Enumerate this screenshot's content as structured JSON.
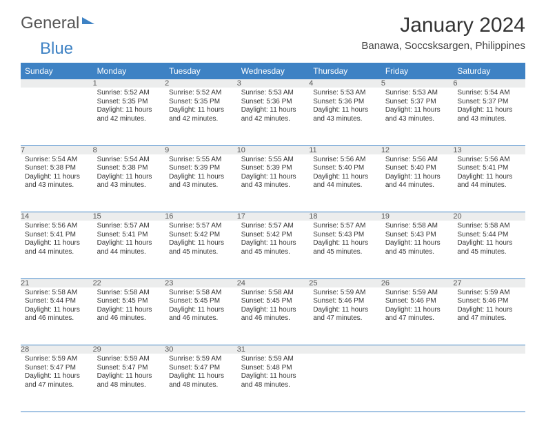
{
  "logo": {
    "general": "General",
    "blue": "Blue"
  },
  "title": "January 2024",
  "location": "Banawa, Soccsksargen, Philippines",
  "colors": {
    "header_bg": "#3e82c4",
    "header_text": "#ffffff",
    "daynum_bg": "#eceded",
    "border": "#3e82c4",
    "text": "#333333"
  },
  "weekdays": [
    "Sunday",
    "Monday",
    "Tuesday",
    "Wednesday",
    "Thursday",
    "Friday",
    "Saturday"
  ],
  "weeks": [
    [
      null,
      {
        "n": "1",
        "sr": "Sunrise: 5:52 AM",
        "ss": "Sunset: 5:35 PM",
        "dl": "Daylight: 11 hours and 42 minutes."
      },
      {
        "n": "2",
        "sr": "Sunrise: 5:52 AM",
        "ss": "Sunset: 5:35 PM",
        "dl": "Daylight: 11 hours and 42 minutes."
      },
      {
        "n": "3",
        "sr": "Sunrise: 5:53 AM",
        "ss": "Sunset: 5:36 PM",
        "dl": "Daylight: 11 hours and 42 minutes."
      },
      {
        "n": "4",
        "sr": "Sunrise: 5:53 AM",
        "ss": "Sunset: 5:36 PM",
        "dl": "Daylight: 11 hours and 43 minutes."
      },
      {
        "n": "5",
        "sr": "Sunrise: 5:53 AM",
        "ss": "Sunset: 5:37 PM",
        "dl": "Daylight: 11 hours and 43 minutes."
      },
      {
        "n": "6",
        "sr": "Sunrise: 5:54 AM",
        "ss": "Sunset: 5:37 PM",
        "dl": "Daylight: 11 hours and 43 minutes."
      }
    ],
    [
      {
        "n": "7",
        "sr": "Sunrise: 5:54 AM",
        "ss": "Sunset: 5:38 PM",
        "dl": "Daylight: 11 hours and 43 minutes."
      },
      {
        "n": "8",
        "sr": "Sunrise: 5:54 AM",
        "ss": "Sunset: 5:38 PM",
        "dl": "Daylight: 11 hours and 43 minutes."
      },
      {
        "n": "9",
        "sr": "Sunrise: 5:55 AM",
        "ss": "Sunset: 5:39 PM",
        "dl": "Daylight: 11 hours and 43 minutes."
      },
      {
        "n": "10",
        "sr": "Sunrise: 5:55 AM",
        "ss": "Sunset: 5:39 PM",
        "dl": "Daylight: 11 hours and 43 minutes."
      },
      {
        "n": "11",
        "sr": "Sunrise: 5:56 AM",
        "ss": "Sunset: 5:40 PM",
        "dl": "Daylight: 11 hours and 44 minutes."
      },
      {
        "n": "12",
        "sr": "Sunrise: 5:56 AM",
        "ss": "Sunset: 5:40 PM",
        "dl": "Daylight: 11 hours and 44 minutes."
      },
      {
        "n": "13",
        "sr": "Sunrise: 5:56 AM",
        "ss": "Sunset: 5:41 PM",
        "dl": "Daylight: 11 hours and 44 minutes."
      }
    ],
    [
      {
        "n": "14",
        "sr": "Sunrise: 5:56 AM",
        "ss": "Sunset: 5:41 PM",
        "dl": "Daylight: 11 hours and 44 minutes."
      },
      {
        "n": "15",
        "sr": "Sunrise: 5:57 AM",
        "ss": "Sunset: 5:41 PM",
        "dl": "Daylight: 11 hours and 44 minutes."
      },
      {
        "n": "16",
        "sr": "Sunrise: 5:57 AM",
        "ss": "Sunset: 5:42 PM",
        "dl": "Daylight: 11 hours and 45 minutes."
      },
      {
        "n": "17",
        "sr": "Sunrise: 5:57 AM",
        "ss": "Sunset: 5:42 PM",
        "dl": "Daylight: 11 hours and 45 minutes."
      },
      {
        "n": "18",
        "sr": "Sunrise: 5:57 AM",
        "ss": "Sunset: 5:43 PM",
        "dl": "Daylight: 11 hours and 45 minutes."
      },
      {
        "n": "19",
        "sr": "Sunrise: 5:58 AM",
        "ss": "Sunset: 5:43 PM",
        "dl": "Daylight: 11 hours and 45 minutes."
      },
      {
        "n": "20",
        "sr": "Sunrise: 5:58 AM",
        "ss": "Sunset: 5:44 PM",
        "dl": "Daylight: 11 hours and 45 minutes."
      }
    ],
    [
      {
        "n": "21",
        "sr": "Sunrise: 5:58 AM",
        "ss": "Sunset: 5:44 PM",
        "dl": "Daylight: 11 hours and 46 minutes."
      },
      {
        "n": "22",
        "sr": "Sunrise: 5:58 AM",
        "ss": "Sunset: 5:45 PM",
        "dl": "Daylight: 11 hours and 46 minutes."
      },
      {
        "n": "23",
        "sr": "Sunrise: 5:58 AM",
        "ss": "Sunset: 5:45 PM",
        "dl": "Daylight: 11 hours and 46 minutes."
      },
      {
        "n": "24",
        "sr": "Sunrise: 5:58 AM",
        "ss": "Sunset: 5:45 PM",
        "dl": "Daylight: 11 hours and 46 minutes."
      },
      {
        "n": "25",
        "sr": "Sunrise: 5:59 AM",
        "ss": "Sunset: 5:46 PM",
        "dl": "Daylight: 11 hours and 47 minutes."
      },
      {
        "n": "26",
        "sr": "Sunrise: 5:59 AM",
        "ss": "Sunset: 5:46 PM",
        "dl": "Daylight: 11 hours and 47 minutes."
      },
      {
        "n": "27",
        "sr": "Sunrise: 5:59 AM",
        "ss": "Sunset: 5:46 PM",
        "dl": "Daylight: 11 hours and 47 minutes."
      }
    ],
    [
      {
        "n": "28",
        "sr": "Sunrise: 5:59 AM",
        "ss": "Sunset: 5:47 PM",
        "dl": "Daylight: 11 hours and 47 minutes."
      },
      {
        "n": "29",
        "sr": "Sunrise: 5:59 AM",
        "ss": "Sunset: 5:47 PM",
        "dl": "Daylight: 11 hours and 48 minutes."
      },
      {
        "n": "30",
        "sr": "Sunrise: 5:59 AM",
        "ss": "Sunset: 5:47 PM",
        "dl": "Daylight: 11 hours and 48 minutes."
      },
      {
        "n": "31",
        "sr": "Sunrise: 5:59 AM",
        "ss": "Sunset: 5:48 PM",
        "dl": "Daylight: 11 hours and 48 minutes."
      },
      null,
      null,
      null
    ]
  ]
}
